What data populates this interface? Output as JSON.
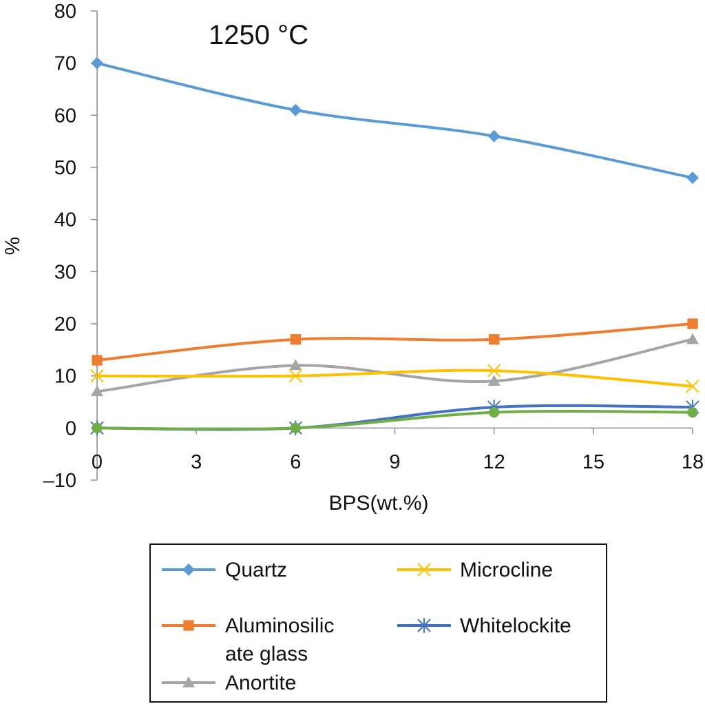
{
  "chart_data": {
    "type": "line",
    "title": "1250 °C",
    "xlabel": "BPS(wt.%)",
    "ylabel": "%",
    "xlim": [
      0,
      18
    ],
    "ylim": [
      -10,
      80
    ],
    "x_ticks": [
      "0",
      "3",
      "6",
      "9",
      "12",
      "15",
      "18"
    ],
    "y_ticks": [
      "80",
      "70",
      "60",
      "50",
      "40",
      "30",
      "20",
      "10",
      "0",
      "–10"
    ],
    "x": [
      0,
      6,
      12,
      18
    ],
    "grid": false,
    "legend_position": "bottom",
    "series": [
      {
        "name": "Quartz",
        "values": [
          70,
          61,
          56,
          48
        ],
        "color": "#5b9bd5",
        "marker": "diamond"
      },
      {
        "name": "Aluminosilicate glass",
        "legend_lines": [
          "Aluminosilic",
          "ate glass"
        ],
        "values": [
          13,
          17,
          17,
          20
        ],
        "color": "#ed7d31",
        "marker": "square"
      },
      {
        "name": "Anortite",
        "values": [
          7,
          12,
          9,
          17
        ],
        "color": "#a5a5a5",
        "marker": "triangle"
      },
      {
        "name": "Microcline",
        "values": [
          10,
          10,
          11,
          8
        ],
        "color": "#ffc000",
        "marker": "x"
      },
      {
        "name": "Whitelockite",
        "values": [
          0,
          0,
          4,
          4
        ],
        "color": "#4472c4",
        "marker": "star"
      },
      {
        "name": "",
        "values": [
          0,
          0,
          3,
          3
        ],
        "color": "#70ad47",
        "marker": "circle"
      }
    ]
  }
}
